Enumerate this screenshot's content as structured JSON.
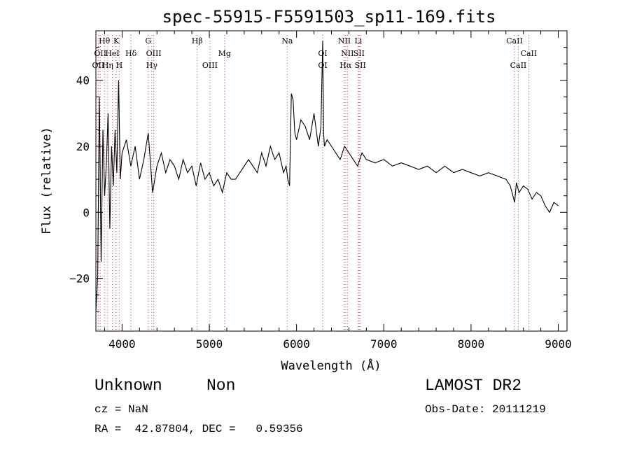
{
  "chart_data": {
    "type": "line",
    "title": "spec-55915-F5591503_sp11-169.fits",
    "xlabel": "Wavelength (Å)",
    "ylabel": "Flux (relative)",
    "xlim": [
      3700,
      9100
    ],
    "ylim": [
      -36,
      55
    ],
    "xticks": [
      4000,
      5000,
      6000,
      7000,
      8000,
      9000
    ],
    "yticks": [
      -20,
      0,
      20,
      40
    ],
    "xtick_labels": [
      "4000",
      "5000",
      "6000",
      "7000",
      "8000",
      "9000"
    ],
    "ytick_labels": [
      "−20",
      "0",
      "20",
      "40"
    ],
    "grid": false,
    "line_color": "#000000",
    "marker_color": "#d04040",
    "series": [
      {
        "x": [
          3700,
          3720,
          3740,
          3760,
          3780,
          3800,
          3820,
          3840,
          3860,
          3880,
          3900,
          3920,
          3940,
          3960,
          3980,
          4000,
          4050,
          4100,
          4150,
          4200,
          4250,
          4300,
          4350,
          4400,
          4450,
          4500,
          4550,
          4600,
          4650,
          4700,
          4750,
          4800,
          4850,
          4900,
          4950,
          5000,
          5050,
          5100,
          5150,
          5200,
          5250,
          5300,
          5350,
          5400,
          5450,
          5500,
          5550,
          5600,
          5650,
          5700,
          5750,
          5800,
          5850,
          5880,
          5900,
          5920,
          5940,
          5960,
          5980,
          6000,
          6050,
          6100,
          6150,
          6200,
          6250,
          6280,
          6300,
          6310,
          6320,
          6350,
          6400,
          6450,
          6500,
          6550,
          6600,
          6650,
          6700,
          6750,
          6800,
          6900,
          7000,
          7100,
          7200,
          7300,
          7400,
          7500,
          7600,
          7700,
          7800,
          7900,
          8000,
          8100,
          8200,
          8300,
          8400,
          8450,
          8480,
          8500,
          8520,
          8550,
          8600,
          8650,
          8700,
          8750,
          8800,
          8850,
          8900,
          8950,
          9000
        ],
        "y": [
          -30,
          -20,
          35,
          -15,
          25,
          5,
          15,
          30,
          -5,
          20,
          8,
          25,
          12,
          40,
          10,
          18,
          22,
          14,
          20,
          10,
          16,
          24,
          6,
          14,
          18,
          12,
          16,
          14,
          10,
          16,
          12,
          14,
          8,
          15,
          10,
          12,
          8,
          10,
          6,
          12,
          10,
          10,
          12,
          14,
          16,
          14,
          12,
          18,
          14,
          20,
          16,
          18,
          12,
          14,
          10,
          8,
          36,
          34,
          24,
          22,
          28,
          26,
          22,
          30,
          20,
          26,
          52,
          24,
          20,
          22,
          20,
          18,
          16,
          20,
          18,
          16,
          14,
          18,
          16,
          15,
          16,
          14,
          15,
          14,
          13,
          14,
          12,
          14,
          12,
          13,
          12,
          11,
          12,
          11,
          10,
          8,
          5,
          3,
          9,
          6,
          8,
          7,
          4,
          6,
          5,
          2,
          0,
          3,
          2
        ]
      }
    ],
    "lines": [
      {
        "name": "OII",
        "wave": 3727,
        "row": 2
      },
      {
        "name": "Hθ",
        "wave": 3798,
        "row": 0
      },
      {
        "name": "OII",
        "wave": 3750,
        "row": 1
      },
      {
        "name": "Hη",
        "wave": 3835,
        "row": 2
      },
      {
        "name": "HeI",
        "wave": 3889,
        "row": 1
      },
      {
        "name": "K",
        "wave": 3934,
        "row": 0
      },
      {
        "name": "H",
        "wave": 3968,
        "row": 2
      },
      {
        "name": "Hδ",
        "wave": 4102,
        "row": 1
      },
      {
        "name": "G",
        "wave": 4300,
        "row": 0
      },
      {
        "name": "OIII",
        "wave": 4363,
        "row": 1
      },
      {
        "name": "Hγ",
        "wave": 4341,
        "row": 2
      },
      {
        "name": "Hβ",
        "wave": 4861,
        "row": 0
      },
      {
        "name": "OIII",
        "wave": 5007,
        "row": 2
      },
      {
        "name": "Mg",
        "wave": 5175,
        "row": 1
      },
      {
        "name": "Na",
        "wave": 5893,
        "row": 0
      },
      {
        "name": "OI",
        "wave": 6300,
        "row": 1
      },
      {
        "name": "OI",
        "wave": 6300,
        "row": 2
      },
      {
        "name": "NII",
        "wave": 6548,
        "row": 0
      },
      {
        "name": "NII",
        "wave": 6583,
        "row": 1
      },
      {
        "name": "Hα",
        "wave": 6563,
        "row": 2
      },
      {
        "name": "SII",
        "wave": 6716,
        "row": 1
      },
      {
        "name": "SII",
        "wave": 6731,
        "row": 2
      },
      {
        "name": "Li",
        "wave": 6708,
        "row": 0
      },
      {
        "name": "CaII",
        "wave": 8498,
        "row": 0
      },
      {
        "name": "CaII",
        "wave": 8542,
        "row": 2
      },
      {
        "name": "CaII",
        "wave": 8662,
        "row": 1
      }
    ]
  },
  "footer": {
    "class": "Unknown",
    "subclass": "Non",
    "survey": "LAMOST DR2",
    "cz": "cz = NaN",
    "obs_date": "Obs-Date: 20111219",
    "radec": "RA =  42.87804, DEC =   0.59356"
  }
}
